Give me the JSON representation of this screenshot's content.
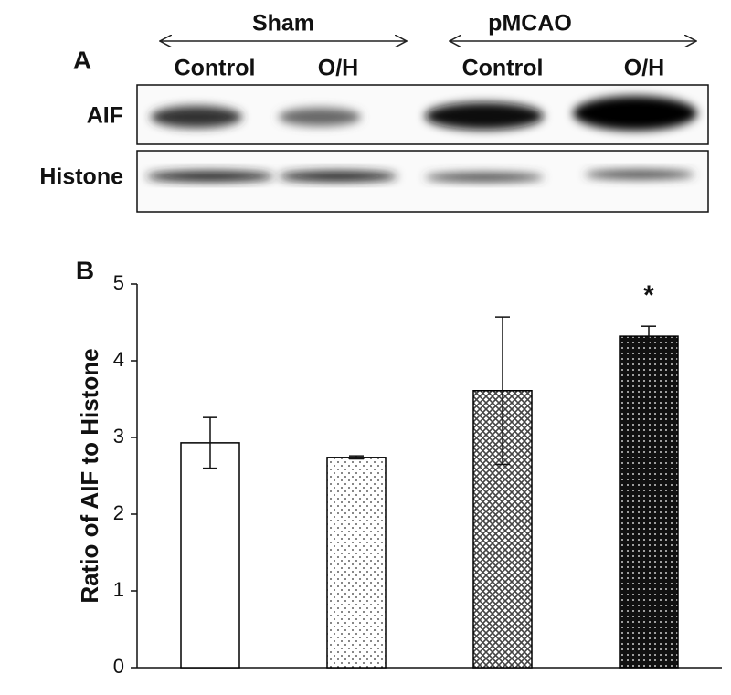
{
  "panel_a": {
    "label": "A",
    "groups": [
      "Sham",
      "pMCAO"
    ],
    "lanes": [
      "Control",
      "O/H",
      "Control",
      "O/H"
    ],
    "rows": [
      "AIF",
      "Histone"
    ]
  },
  "chart_data": {
    "type": "bar",
    "panel_label": "B",
    "y_label": "Ratio of AIF to Histone",
    "categories": [
      null,
      null,
      null,
      null
    ],
    "values": [
      2.93,
      2.74,
      3.61,
      4.32
    ],
    "errors": [
      0.33,
      0.02,
      0.96,
      0.13
    ],
    "annotation": "*",
    "color": "#000000",
    "ylim": [
      0,
      5
    ],
    "yticks": [
      0,
      1,
      2,
      3,
      4,
      5
    ],
    "grid": false
  }
}
